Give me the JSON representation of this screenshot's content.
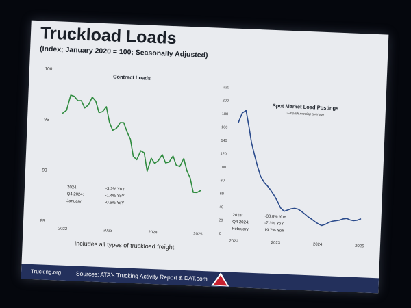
{
  "slide": {
    "title": "Truckload Loads",
    "subtitle": "(Index; January 2020 = 100; Seasonally Adjusted)",
    "footnote": "Includes all types of truckload freight.",
    "footer_site": "Trucking.org",
    "footer_sources": "Sources: ATA's Trucking Activity Report & DAT.com",
    "logo_text": "ATA"
  },
  "colors": {
    "contract_line": "#2e8b3e",
    "spot_line": "#2b4b8c",
    "footer_bg": "#23305c"
  },
  "chart_data": [
    {
      "type": "line",
      "title": "Contract Loads",
      "subtitle": "",
      "x_ticks": [
        "2022",
        "2023",
        "2024",
        "2025"
      ],
      "ylim": [
        85,
        100
      ],
      "y_ticks": [
        85,
        90,
        95,
        100
      ],
      "grid": false,
      "series": [
        {
          "x": [
            2021.9,
            2021.98,
            2022.06,
            2022.14,
            2022.22,
            2022.3,
            2022.38,
            2022.46,
            2022.54,
            2022.62,
            2022.7,
            2022.78,
            2022.86,
            2022.94,
            2023.02,
            2023.1,
            2023.18,
            2023.26,
            2023.34,
            2023.42,
            2023.5,
            2023.58,
            2023.66,
            2023.74,
            2023.82,
            2023.9,
            2023.98,
            2024.06,
            2024.14,
            2024.22,
            2024.3,
            2024.38,
            2024.46,
            2024.54,
            2024.62,
            2024.7,
            2024.78,
            2024.86,
            2024.94,
            2025.02
          ],
          "y": [
            95.7,
            96.0,
            97.5,
            97.4,
            97.0,
            97.0,
            96.3,
            96.6,
            97.4,
            97.0,
            95.9,
            96.0,
            96.5,
            95.0,
            94.2,
            94.4,
            95.0,
            95.0,
            94.1,
            93.4,
            91.7,
            91.4,
            92.3,
            92.1,
            90.3,
            91.6,
            91.1,
            91.4,
            92.0,
            91.2,
            91.3,
            91.9,
            91.0,
            90.9,
            91.7,
            90.5,
            89.8,
            88.4,
            88.4,
            88.6
          ]
        }
      ],
      "annotations": [
        {
          "label": "2024:",
          "value": "-3.2% YoY"
        },
        {
          "label": "Q4 2024:",
          "value": "-1.4% YoY"
        },
        {
          "label": "January:",
          "value": "-0.6% YoY"
        }
      ]
    },
    {
      "type": "line",
      "title": "Spot Market Load Postings",
      "subtitle": "3-month moving average",
      "x_ticks": [
        "2022",
        "2023",
        "2024",
        "2025"
      ],
      "ylim": [
        0,
        220
      ],
      "y_ticks": [
        0,
        20,
        40,
        60,
        80,
        100,
        120,
        140,
        160,
        180,
        200,
        220
      ],
      "grid": false,
      "series": [
        {
          "x": [
            2022.0,
            2022.08,
            2022.17,
            2022.25,
            2022.33,
            2022.42,
            2022.5,
            2022.58,
            2022.67,
            2022.75,
            2022.83,
            2022.92,
            2023.0,
            2023.08,
            2023.17,
            2023.25,
            2023.33,
            2023.42,
            2023.5,
            2023.58,
            2023.67,
            2023.75,
            2023.83,
            2023.92,
            2024.0,
            2024.08,
            2024.17,
            2024.25,
            2024.33,
            2024.42,
            2024.5,
            2024.58,
            2024.67,
            2024.75,
            2024.83,
            2024.92,
            2025.0
          ],
          "y": [
            168,
            182,
            186,
            163,
            138,
            118,
            102,
            88,
            79,
            74,
            68,
            60,
            52,
            42,
            37,
            39,
            41,
            42,
            41,
            38,
            34,
            30,
            27,
            23,
            20,
            18,
            20,
            23,
            25,
            26,
            27,
            29,
            30,
            28,
            27,
            28,
            30
          ]
        }
      ],
      "annotations": [
        {
          "label": "2024:",
          "value": "-30.0% YoY"
        },
        {
          "label": "Q4 2024:",
          "value": "-7.3% YoY"
        },
        {
          "label": "February:",
          "value": "19.7% YoY"
        }
      ]
    }
  ]
}
